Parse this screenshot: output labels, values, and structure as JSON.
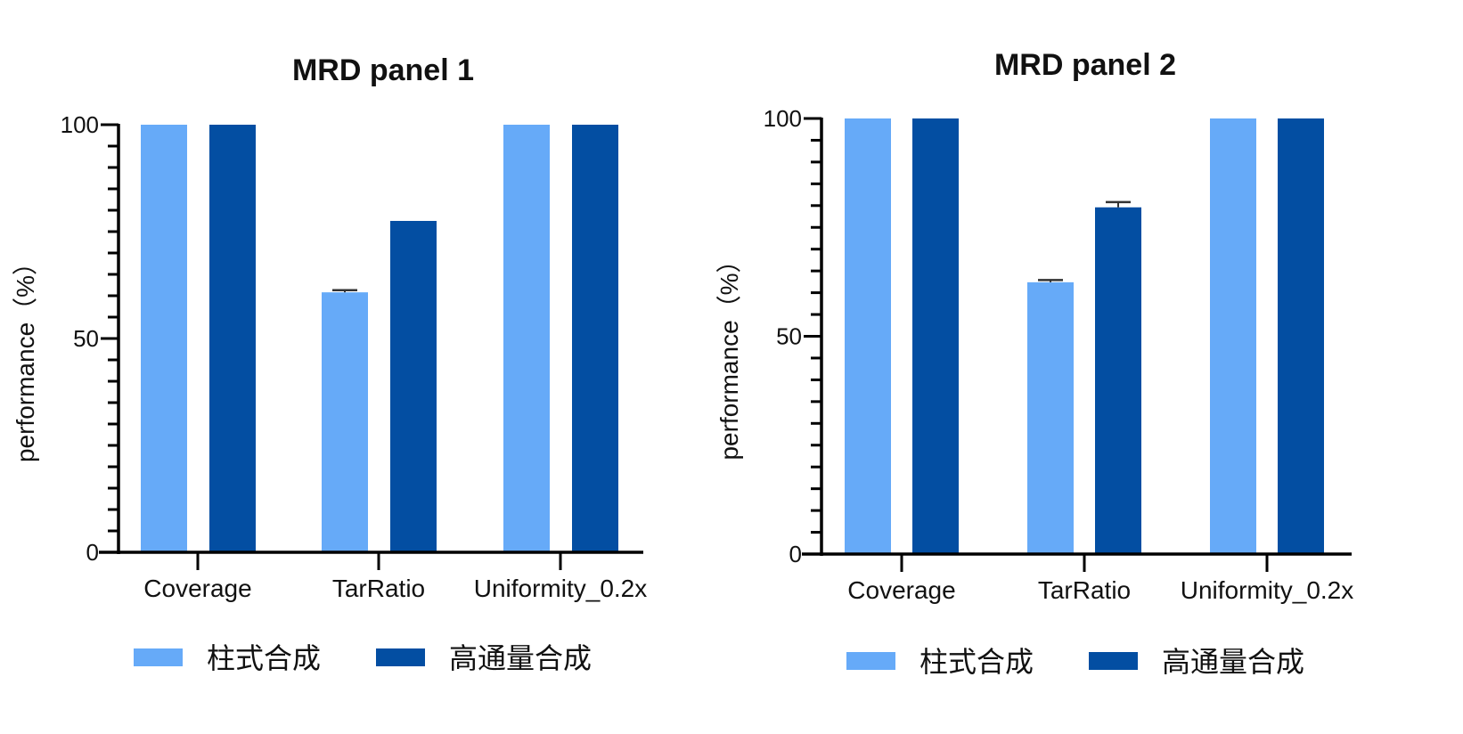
{
  "chart_data": [
    {
      "type": "bar",
      "title": "MRD panel 1",
      "ylabel": "performance（%）",
      "xlabel": "",
      "categories": [
        "Coverage",
        "TarRatio",
        "Uniformity_0.2x"
      ],
      "ylim": [
        0,
        100
      ],
      "yticks": [
        "0",
        "50",
        "100"
      ],
      "minor_tick_step": 5,
      "grid": false,
      "legend_position": "bottom",
      "series": [
        {
          "name": "柱式合成",
          "color": "#66aaf8",
          "values": [
            100,
            60.8,
            100
          ],
          "errors": [
            0,
            0.5,
            0
          ]
        },
        {
          "name": "高通量合成",
          "color": "#034ea2",
          "values": [
            100,
            77.5,
            100
          ],
          "errors": [
            0,
            0,
            0
          ]
        }
      ]
    },
    {
      "type": "bar",
      "title": "MRD panel 2",
      "ylabel": "performance（%）",
      "xlabel": "",
      "categories": [
        "Coverage",
        "TarRatio",
        "Uniformity_0.2x"
      ],
      "ylim": [
        0,
        100
      ],
      "yticks": [
        "0",
        "50",
        "100"
      ],
      "minor_tick_step": 5,
      "grid": false,
      "legend_position": "bottom",
      "series": [
        {
          "name": "柱式合成",
          "color": "#66aaf8",
          "values": [
            100,
            62.4,
            100
          ],
          "errors": [
            0,
            0.5,
            0
          ]
        },
        {
          "name": "高通量合成",
          "color": "#034ea2",
          "values": [
            100,
            79.6,
            100
          ],
          "errors": [
            0,
            1.2,
            0
          ]
        }
      ]
    }
  ]
}
